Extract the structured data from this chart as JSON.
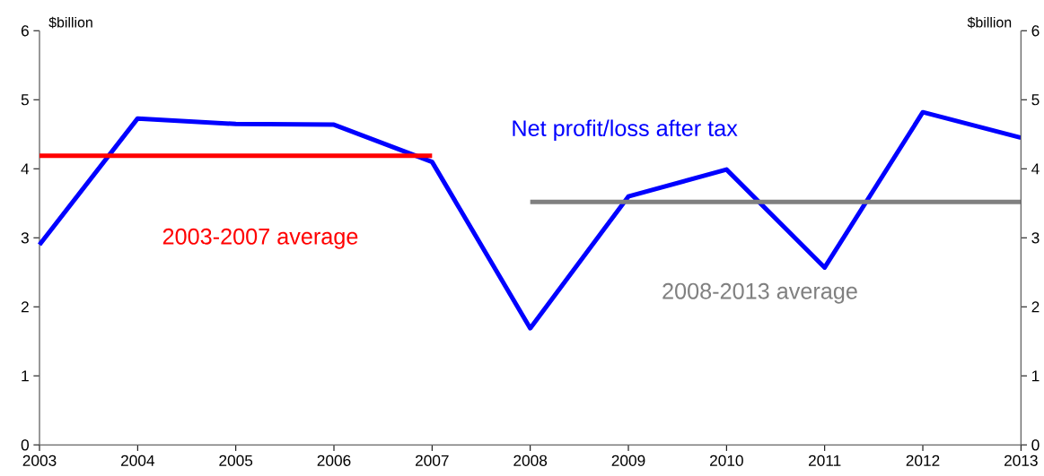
{
  "chart_data": {
    "type": "line",
    "ylabel": "$billion",
    "y2label": "$billion",
    "x": [
      2003,
      2004,
      2005,
      2006,
      2007,
      2008,
      2009,
      2010,
      2011,
      2012,
      2013
    ],
    "xlim": [
      2003,
      2013
    ],
    "xticks": [
      2003,
      2004,
      2005,
      2006,
      2007,
      2008,
      2009,
      2010,
      2011,
      2012,
      2013
    ],
    "ylim": [
      0,
      6
    ],
    "yticks": [
      0,
      1,
      2,
      3,
      4,
      5,
      6
    ],
    "y2lim": [
      0,
      6
    ],
    "y2ticks": [
      0,
      1,
      2,
      3,
      4,
      5,
      6
    ],
    "series": [
      {
        "name": "Net profit/loss after tax",
        "color": "#0000ff",
        "values": [
          2.9,
          4.73,
          4.65,
          4.64,
          4.1,
          1.69,
          3.6,
          3.99,
          2.57,
          4.82,
          4.45
        ]
      },
      {
        "name": "2003-2007 average",
        "color": "#ff0000",
        "x": [
          2003,
          2007
        ],
        "values": [
          4.19,
          4.19
        ]
      },
      {
        "name": "2008-2013 average",
        "color": "#808080",
        "x": [
          2008,
          2013
        ],
        "values": [
          3.52,
          3.52
        ]
      }
    ]
  }
}
